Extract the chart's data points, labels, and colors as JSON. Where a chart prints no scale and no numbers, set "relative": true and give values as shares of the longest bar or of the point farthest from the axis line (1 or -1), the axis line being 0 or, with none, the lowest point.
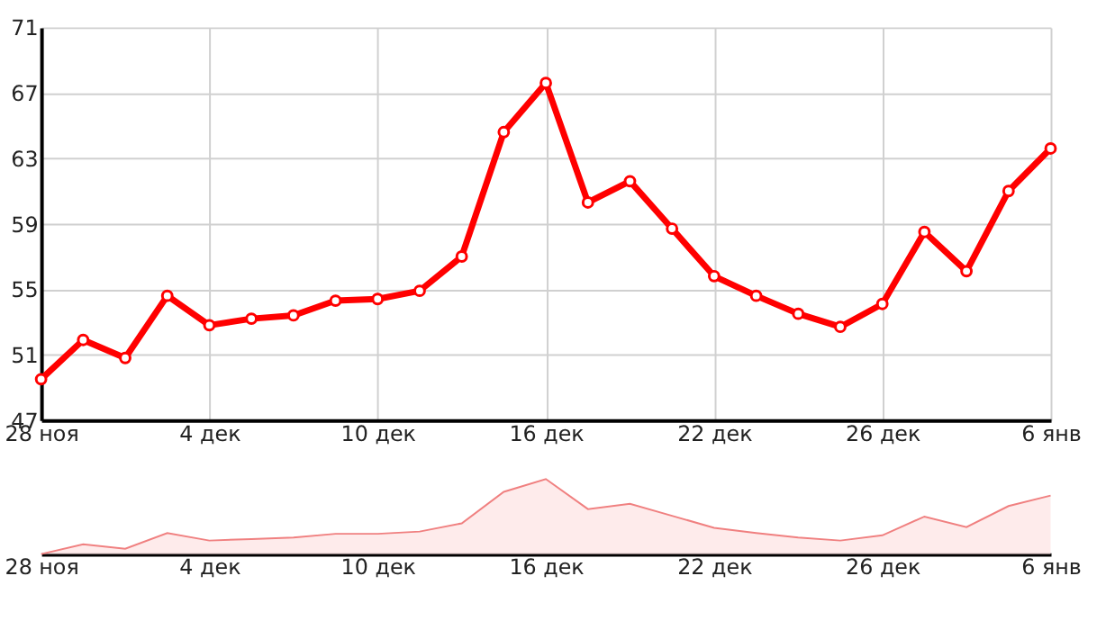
{
  "chart_data": [
    {
      "type": "line",
      "categories": [
        "28 ноя",
        null,
        null,
        null,
        "4 дек",
        null,
        null,
        null,
        "10 дек",
        null,
        null,
        null,
        "16 дек",
        null,
        null,
        null,
        "22 дек",
        null,
        null,
        null,
        "26 дек",
        null,
        null,
        null,
        "6 янв"
      ],
      "series": [
        {
          "color": "#ff0000",
          "values": [
            49.5,
            51.9,
            50.8,
            54.6,
            52.8,
            53.2,
            53.4,
            54.3,
            54.4,
            54.9,
            57.0,
            64.6,
            67.6,
            60.3,
            61.6,
            58.7,
            55.8,
            54.6,
            53.5,
            52.7,
            54.1,
            58.5,
            56.1,
            61.0,
            63.6
          ]
        }
      ],
      "ylim": [
        47,
        71
      ],
      "yticks": [
        47,
        51,
        55,
        59,
        63,
        67,
        71
      ],
      "grid": true,
      "marker": "circle",
      "line_style": "solid"
    },
    {
      "type": "area",
      "relative": true,
      "categories": [
        "28 ноя",
        null,
        null,
        null,
        "4 дек",
        null,
        null,
        null,
        "10 дек",
        null,
        null,
        null,
        "16 дек",
        null,
        null,
        null,
        "22 дек",
        null,
        null,
        null,
        "26 дек",
        null,
        null,
        null,
        "6 янв"
      ],
      "series": [
        {
          "color": "#f08080",
          "values": [
            0,
            0.13,
            0.07,
            0.28,
            0.18,
            0.2,
            0.22,
            0.27,
            0.27,
            0.3,
            0.41,
            0.83,
            1,
            0.6,
            0.67,
            0.51,
            0.35,
            0.28,
            0.22,
            0.18,
            0.25,
            0.5,
            0.36,
            0.64,
            0.78
          ]
        }
      ]
    }
  ]
}
